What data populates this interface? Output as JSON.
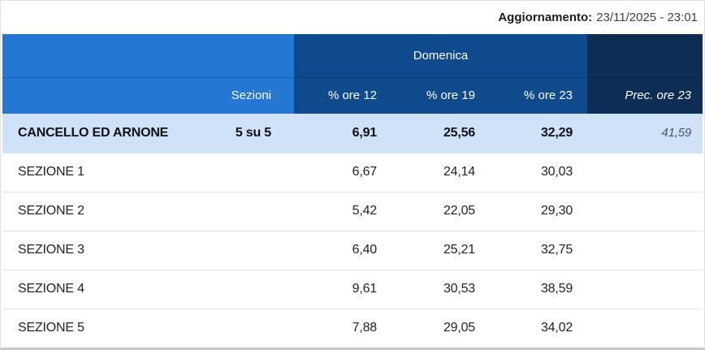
{
  "update_bar": {
    "label": "Aggiornamento:",
    "value": "23/11/2025 - 23:01"
  },
  "table": {
    "group_header": {
      "domenica": "Domenica"
    },
    "columns": {
      "sezioni": "Sezioni",
      "ore12": "% ore 12",
      "ore19": "% ore 19",
      "ore23": "% ore 23",
      "prec": "Prec. ore 23"
    },
    "summary_row": {
      "name": "CANCELLO ED ARNONE",
      "sezioni": "5 su 5",
      "ore12": "6,91",
      "ore19": "25,56",
      "ore23": "32,29",
      "prec": "41,59"
    },
    "rows": [
      {
        "name": "SEZIONE 1",
        "ore12": "6,67",
        "ore19": "24,14",
        "ore23": "30,03"
      },
      {
        "name": "SEZIONE 2",
        "ore12": "5,42",
        "ore19": "22,05",
        "ore23": "29,30"
      },
      {
        "name": "SEZIONE 3",
        "ore12": "6,40",
        "ore19": "25,21",
        "ore23": "32,75"
      },
      {
        "name": "SEZIONE 4",
        "ore12": "9,61",
        "ore19": "30,53",
        "ore23": "38,59"
      },
      {
        "name": "SEZIONE 5",
        "ore12": "7,88",
        "ore19": "29,05",
        "ore23": "34,02"
      }
    ]
  },
  "colors": {
    "header-light-blue": "#2478d4",
    "header-dark-blue": "#0f4a8c",
    "header-navy": "#0d2d55",
    "summary-row-bg": "#cfe2f8"
  }
}
